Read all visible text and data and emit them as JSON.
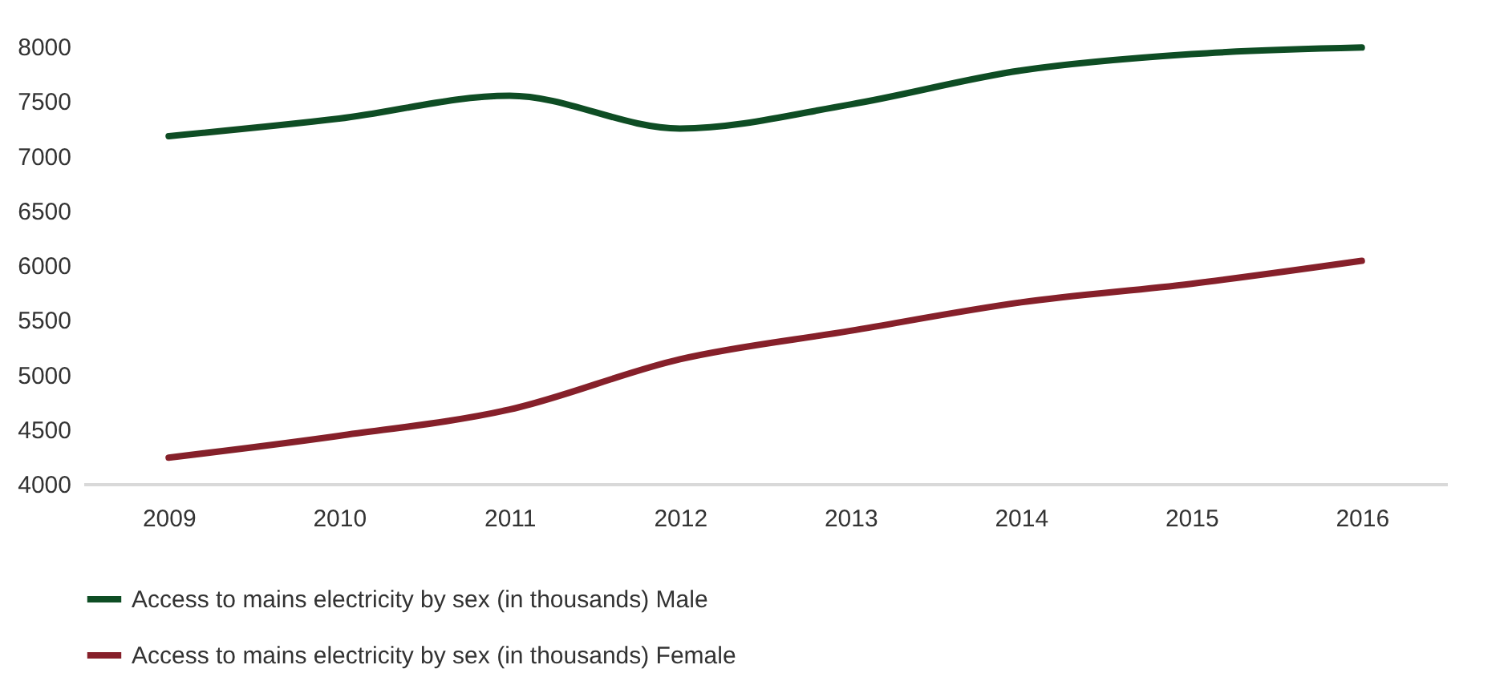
{
  "chart_data": {
    "type": "line",
    "categories": [
      "2009",
      "2010",
      "2011",
      "2012",
      "2013",
      "2014",
      "2015",
      "2016"
    ],
    "series": [
      {
        "name": "Access to mains electricity by sex (in thousands) Male",
        "color": "#0e4d24",
        "values": [
          7180,
          7340,
          7550,
          7250,
          7470,
          7780,
          7930,
          7990
        ]
      },
      {
        "name": "Access to mains electricity by sex (in thousands) Female",
        "color": "#86202a",
        "values": [
          4240,
          4440,
          4680,
          5140,
          5400,
          5660,
          5830,
          6040
        ]
      }
    ],
    "ylim": [
      4000,
      8000
    ],
    "yticks": [
      4000,
      4500,
      5000,
      5500,
      6000,
      6500,
      7000,
      7500,
      8000
    ],
    "grid": false,
    "legend": "bottom",
    "marker": "none",
    "line_style": "solid"
  }
}
